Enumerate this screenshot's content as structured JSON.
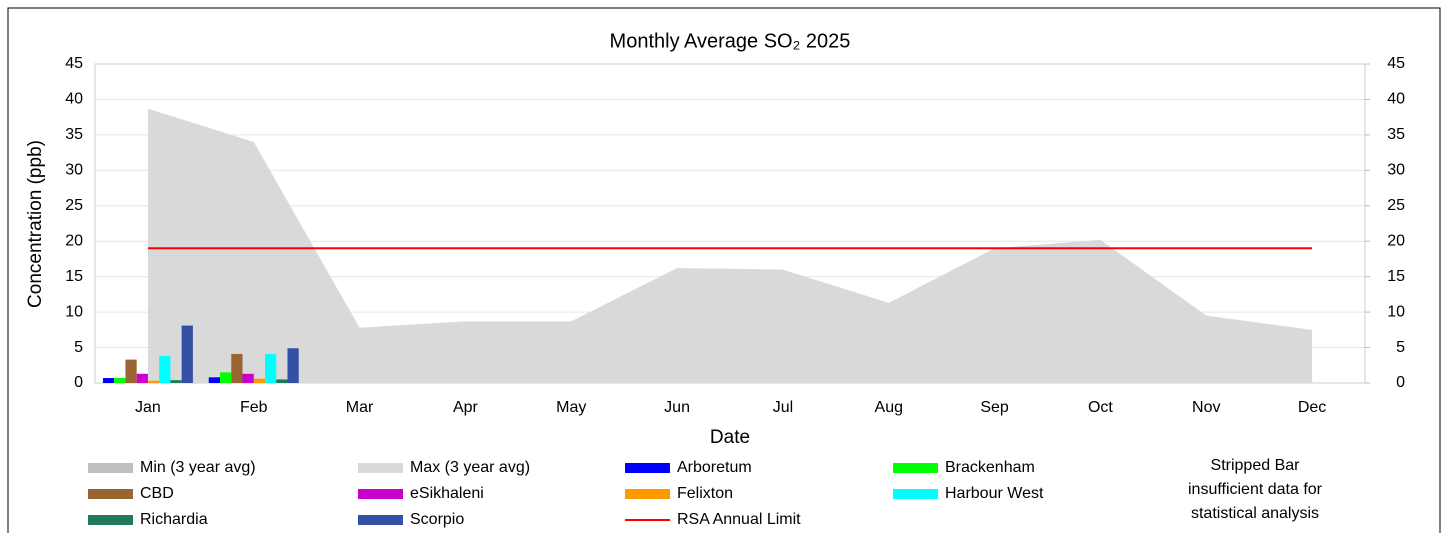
{
  "chart_data": {
    "type": "combo",
    "title": "Monthly Average  SO₂ 2025",
    "x_label": "Date",
    "y_label": "Concentration (ppb)",
    "categories": [
      "Jan",
      "Feb",
      "Mar",
      "Apr",
      "May",
      "Jun",
      "Jul",
      "Aug",
      "Sep",
      "Oct",
      "Nov",
      "Dec"
    ],
    "ylim": [
      0,
      45
    ],
    "yticks": [
      0,
      5,
      10,
      15,
      20,
      25,
      30,
      35,
      40,
      45
    ],
    "y2lim": [
      0,
      45
    ],
    "y2ticks": [
      0,
      5,
      10,
      15,
      20,
      25,
      30,
      35,
      40,
      45
    ],
    "series": [
      {
        "name": "Min (3 year avg)",
        "type": "area",
        "color": "#bfbfbf",
        "values": [
          0.3,
          0.3,
          0.3,
          0.4,
          0.4,
          0.5,
          0.8,
          0.7,
          0.4,
          0.4,
          0.4,
          0.4
        ]
      },
      {
        "name": "Max (3 year avg)",
        "type": "area",
        "color": "#d9d9d9",
        "values": [
          38.7,
          34,
          7.8,
          8.7,
          8.7,
          16.2,
          16,
          11.3,
          19,
          20.2,
          9.5,
          7.5
        ]
      },
      {
        "name": "Arboretum",
        "type": "bar",
        "color": "#0000ff",
        "values": [
          0.7,
          0.8,
          null,
          null,
          null,
          null,
          null,
          null,
          null,
          null,
          null,
          null
        ]
      },
      {
        "name": "Brackenham",
        "type": "bar",
        "color": "#00ff00",
        "values": [
          0.7,
          1.5,
          null,
          null,
          null,
          null,
          null,
          null,
          null,
          null,
          null,
          null
        ]
      },
      {
        "name": "CBD",
        "type": "bar",
        "color": "#996633",
        "values": [
          3.3,
          4.1,
          null,
          null,
          null,
          null,
          null,
          null,
          null,
          null,
          null,
          null
        ]
      },
      {
        "name": "eSikhaleni",
        "type": "bar",
        "color": "#cc00cc",
        "values": [
          1.3,
          1.3,
          null,
          null,
          null,
          null,
          null,
          null,
          null,
          null,
          null,
          null
        ]
      },
      {
        "name": "Felixton",
        "type": "bar",
        "color": "#ff9900",
        "values": [
          0.3,
          0.6,
          null,
          null,
          null,
          null,
          null,
          null,
          null,
          null,
          null,
          null
        ]
      },
      {
        "name": "Harbour West",
        "type": "bar",
        "color": "#00ffff",
        "values": [
          3.8,
          4.1,
          null,
          null,
          null,
          null,
          null,
          null,
          null,
          null,
          null,
          null
        ]
      },
      {
        "name": "Richardia",
        "type": "bar",
        "color": "#1f7a5a",
        "values": [
          0.4,
          0.5,
          null,
          null,
          null,
          null,
          null,
          null,
          null,
          null,
          null,
          null
        ]
      },
      {
        "name": "Scorpio",
        "type": "bar",
        "color": "#334fa6",
        "values": [
          8.1,
          4.9,
          null,
          null,
          null,
          null,
          null,
          null,
          null,
          null,
          null,
          null
        ]
      },
      {
        "name": "RSA Annual Limit",
        "type": "line",
        "color": "#ff0000",
        "values": [
          19,
          19,
          19,
          19,
          19,
          19,
          19,
          19,
          19,
          19,
          19,
          19
        ]
      }
    ],
    "note": [
      "Stripped Bar",
      "insufficient data for",
      "statistical analysis"
    ]
  }
}
